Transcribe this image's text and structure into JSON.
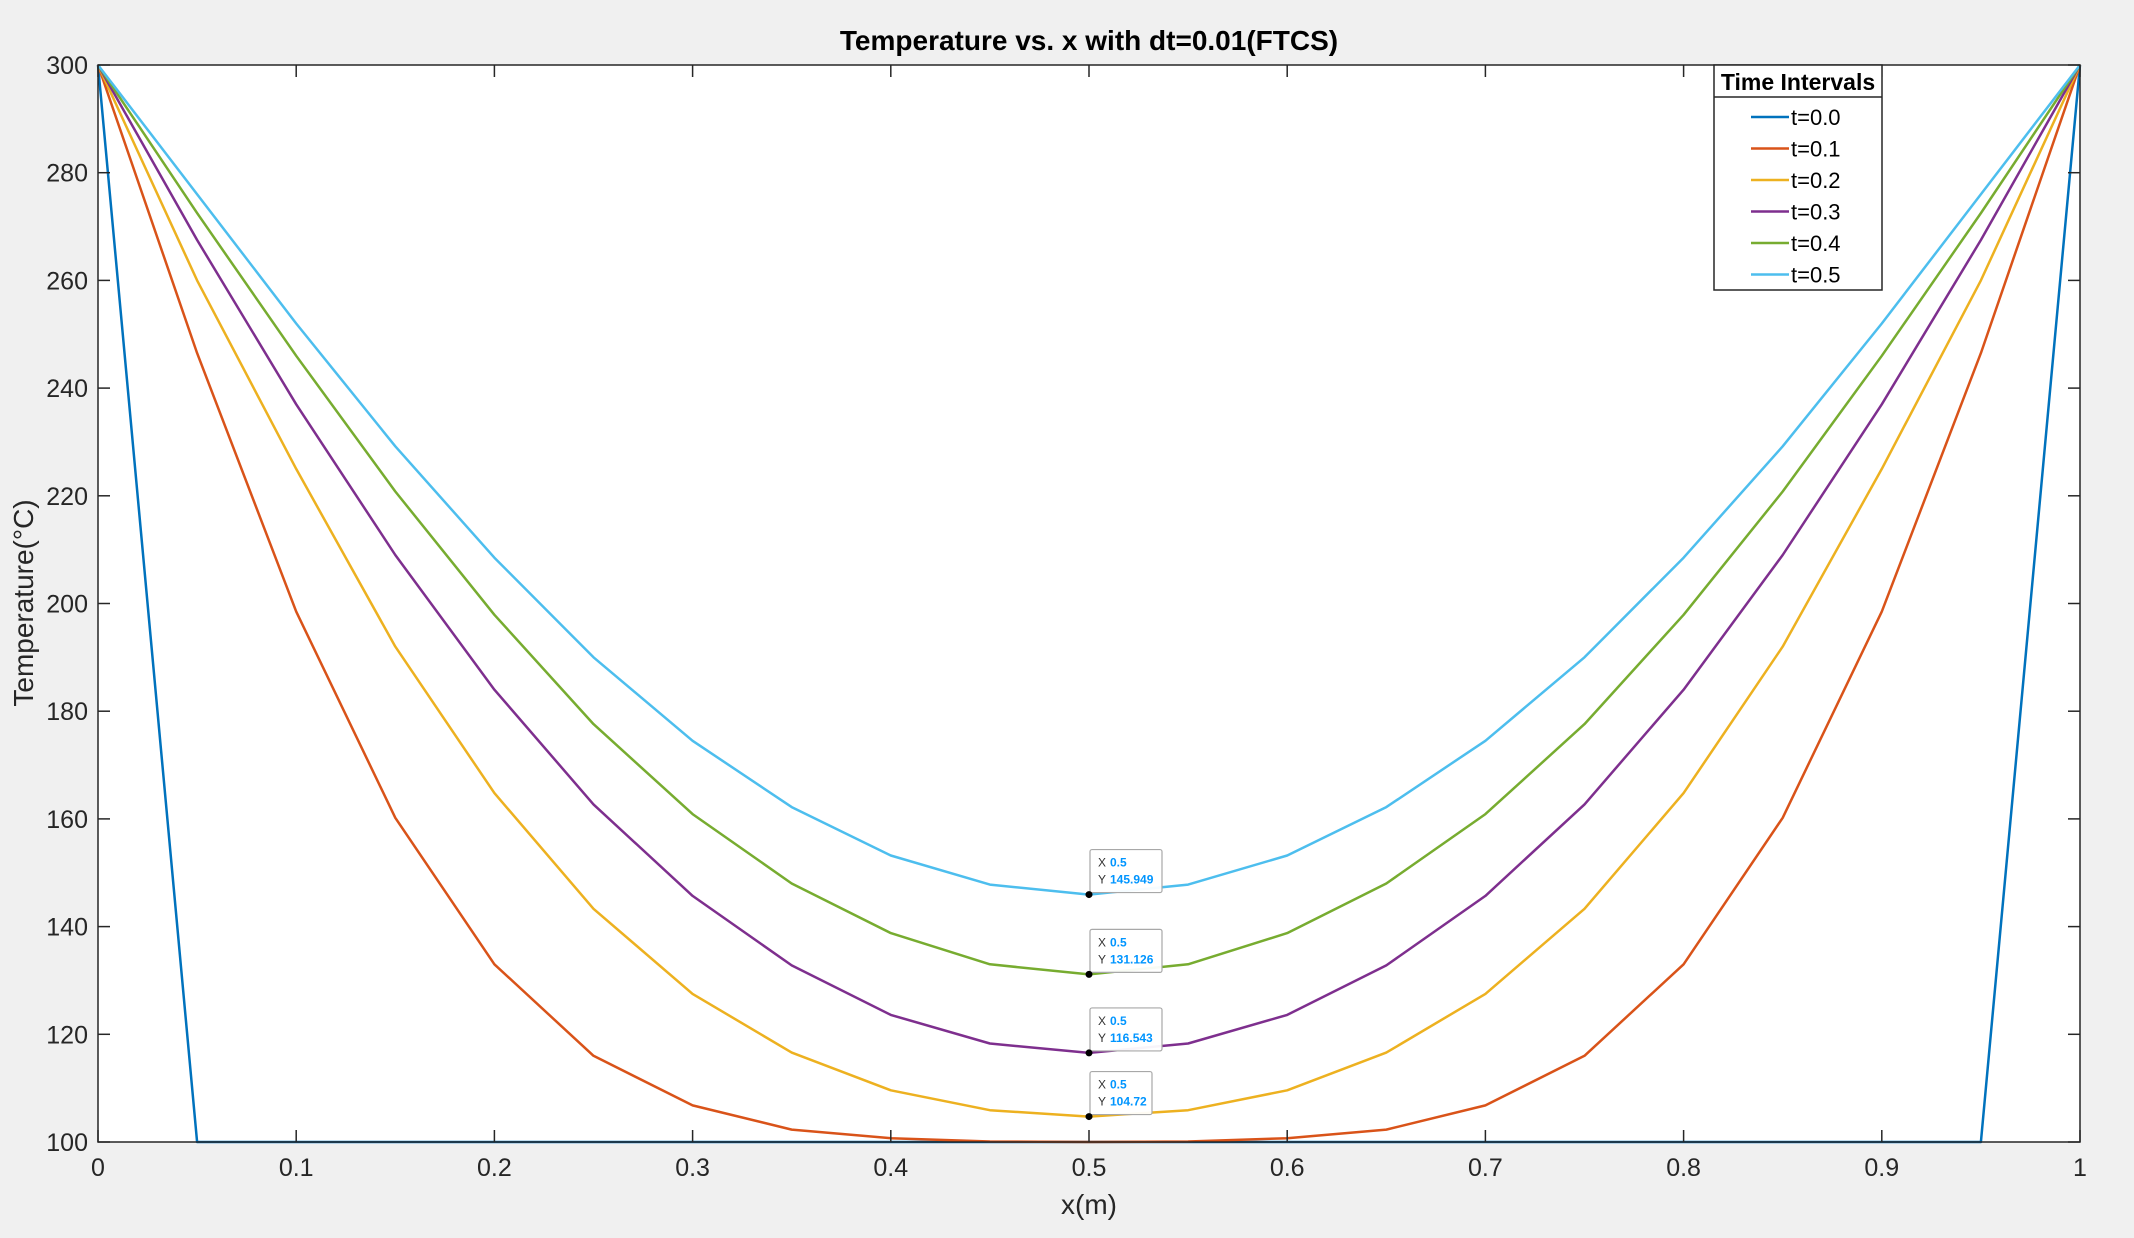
{
  "chart_data": {
    "type": "line",
    "title": "Temperature vs. x with dt=0.01(FTCS)",
    "xlabel": "x(m)",
    "ylabel": "Temperature(°C)",
    "xlim": [
      0,
      1
    ],
    "ylim": [
      100,
      300
    ],
    "xticks": [
      0,
      0.1,
      0.2,
      0.3,
      0.4,
      0.5,
      0.6,
      0.7,
      0.8,
      0.9,
      1
    ],
    "xtick_labels": [
      "0",
      "0.1",
      "0.2",
      "0.3",
      "0.4",
      "0.5",
      "0.6",
      "0.7",
      "0.8",
      "0.9",
      "1"
    ],
    "yticks": [
      100,
      120,
      140,
      160,
      180,
      200,
      220,
      240,
      260,
      280,
      300
    ],
    "ytick_labels": [
      "100",
      "120",
      "140",
      "160",
      "180",
      "200",
      "220",
      "240",
      "260",
      "280",
      "300"
    ],
    "grid": false,
    "legend": {
      "title": "Time Intervals",
      "location": "top-right"
    },
    "x": [
      0,
      0.05,
      0.1,
      0.15,
      0.2,
      0.25,
      0.3,
      0.35,
      0.4,
      0.45,
      0.5,
      0.55,
      0.6,
      0.65,
      0.7,
      0.75,
      0.8,
      0.85,
      0.9,
      0.95,
      1
    ],
    "series": [
      {
        "name": "t=0.0",
        "color": "#0072BD",
        "values": [
          300,
          100,
          100,
          100,
          100,
          100,
          100,
          100,
          100,
          100,
          100,
          100,
          100,
          100,
          100,
          100,
          100,
          100,
          100,
          100,
          300
        ]
      },
      {
        "name": "t=0.1",
        "color": "#D95319",
        "values": [
          300,
          246.5,
          198.5,
          160.2,
          133.0,
          116.0,
          106.8,
          102.3,
          100.7,
          100.1,
          100.0,
          100.1,
          100.7,
          102.3,
          106.8,
          116.0,
          133.0,
          160.2,
          198.5,
          246.5,
          300
        ]
      },
      {
        "name": "t=0.2",
        "color": "#EDB120",
        "values": [
          300,
          260.0,
          225.0,
          192.0,
          164.8,
          143.3,
          127.5,
          116.6,
          109.6,
          105.9,
          104.72,
          105.9,
          109.6,
          116.6,
          127.5,
          143.3,
          164.8,
          192.0,
          225.0,
          260.0,
          300
        ]
      },
      {
        "name": "t=0.3",
        "color": "#7E2F8E",
        "values": [
          300,
          267.5,
          237.0,
          209.0,
          184.0,
          162.7,
          145.7,
          132.8,
          123.6,
          118.3,
          116.543,
          118.3,
          123.6,
          132.8,
          145.7,
          162.7,
          184.0,
          209.0,
          237.0,
          267.5,
          300
        ]
      },
      {
        "name": "t=0.4",
        "color": "#77AC30",
        "values": [
          300,
          272.5,
          246.0,
          220.8,
          197.9,
          177.6,
          160.9,
          148.0,
          138.8,
          133.0,
          131.126,
          133.0,
          138.8,
          148.0,
          160.9,
          177.6,
          197.9,
          220.8,
          246.0,
          272.5,
          300
        ]
      },
      {
        "name": "t=0.5",
        "color": "#4DBEEE",
        "values": [
          300,
          276.0,
          252.0,
          229.2,
          208.5,
          190.0,
          174.5,
          162.2,
          153.2,
          147.8,
          145.949,
          147.8,
          153.2,
          162.2,
          174.5,
          190.0,
          208.5,
          229.2,
          252.0,
          276.0,
          300
        ]
      }
    ],
    "annotations": [
      {
        "x": 0.5,
        "y": 145.949,
        "x_label": "X",
        "y_label": "Y",
        "x_text": "0.5",
        "y_text": "145.949"
      },
      {
        "x": 0.5,
        "y": 131.126,
        "x_label": "X",
        "y_label": "Y",
        "x_text": "0.5",
        "y_text": "131.126"
      },
      {
        "x": 0.5,
        "y": 116.543,
        "x_label": "X",
        "y_label": "Y",
        "x_text": "0.5",
        "y_text": "116.543"
      },
      {
        "x": 0.5,
        "y": 104.72,
        "x_label": "X",
        "y_label": "Y",
        "x_text": "0.5",
        "y_text": "104.72"
      }
    ],
    "colors": {
      "background": "#f0f0f0",
      "axes": "#ffffff",
      "axis_line": "#262626",
      "datatip_value": "#0095ff"
    }
  }
}
